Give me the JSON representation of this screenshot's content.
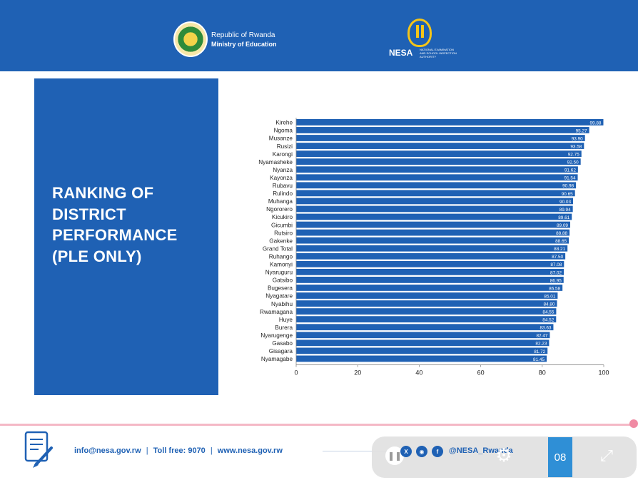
{
  "header": {
    "republic": "Republic of Rwanda",
    "ministry": "Ministry of Education",
    "agency": "NESA",
    "agency_full": "NATIONAL EXAMINATION AND SCHOOL INSPECTION AUTHORITY"
  },
  "title_lines": [
    "RANKING OF",
    "DISTRICT",
    "PERFORMANCE",
    "(PLE ONLY)"
  ],
  "chart_data": {
    "type": "bar",
    "orientation": "horizontal",
    "title": "",
    "xlabel": "",
    "ylabel": "",
    "xlim": [
      0,
      100
    ],
    "x_ticks": [
      0,
      20,
      40,
      60,
      80,
      100
    ],
    "bar_color": "#1f61b4",
    "grid": false,
    "legend": "none",
    "categories": [
      "Kirehe",
      "Ngoma",
      "Musanze",
      "Rusizi",
      "Karongi",
      "Nyamasheke",
      "Nyanza",
      "Kayonza",
      "Rubavu",
      "Rulindo",
      "Muhanga",
      "Ngororero",
      "Kicukiro",
      "Gicumbi",
      "Rutsiro",
      "Gakenke",
      "Grand Total",
      "Ruhango",
      "Kamonyi",
      "Nyaruguru",
      "Gatsibo",
      "Bugesera",
      "Nyagatare",
      "Nyabihu",
      "Rwamagana",
      "Huye",
      "Burera",
      "Nyarugenge",
      "Gasabo",
      "Gisagara",
      "Nyamagabe"
    ],
    "values": [
      99.88,
      95.27,
      93.9,
      93.58,
      92.75,
      92.5,
      91.62,
      91.54,
      90.98,
      90.65,
      90.03,
      89.94,
      89.61,
      89.09,
      88.88,
      88.65,
      88.21,
      87.5,
      87.08,
      87.02,
      86.95,
      86.58,
      85.01,
      84.8,
      84.55,
      84.52,
      83.63,
      82.47,
      82.23,
      81.72,
      81.45
    ],
    "value_labels": [
      "99.88",
      "95.27",
      "93.90",
      "93.58",
      "92.75",
      "92.50",
      "91.62",
      "91.54",
      "90.98",
      "90.65",
      "90.03",
      "89.94",
      "89.61",
      "89.09",
      "88.88",
      "88.65",
      "88.21",
      "87.50",
      "87.08",
      "87.02",
      "86.95",
      "86.58",
      "85.01",
      "84.80",
      "84.55",
      "84.52",
      "83.63",
      "82.47",
      "82.23",
      "81.72",
      "81.45"
    ]
  },
  "footer": {
    "email": "info@nesa.gov.rw",
    "toll_free": "Toll free: 9070",
    "website": "www.nesa.gov.rw",
    "separator": "|",
    "social_handle": "@NESA_Rwanda"
  },
  "player": {
    "page_number": "08"
  },
  "icons": {
    "seal": "rwanda-coat-of-arms-icon",
    "nesa": "nesa-logo-icon",
    "document": "document-pen-icon",
    "twitter": "twitter-icon",
    "instagram": "instagram-icon",
    "facebook": "facebook-icon",
    "pause": "pause-icon",
    "settings": "gear-icon",
    "fullscreen": "expand-icon"
  },
  "colors": {
    "brand_blue": "#1f61b4",
    "accent_pink": "#f4b8c6",
    "gold": "#f5c518"
  }
}
